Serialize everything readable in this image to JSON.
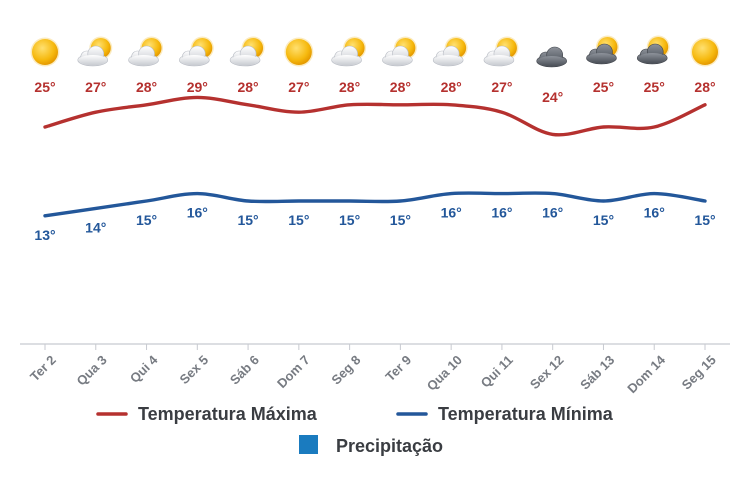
{
  "chart_data": {
    "type": "line",
    "categories": [
      "Ter 2",
      "Qua 3",
      "Qui 4",
      "Sex 5",
      "Sáb 6",
      "Dom 7",
      "Seg 8",
      "Ter 9",
      "Qua 10",
      "Qui 11",
      "Sex 12",
      "Sáb 13",
      "Dom 14",
      "Seg 15"
    ],
    "icons": [
      "sun-icon",
      "sun-cloud-icon",
      "sun-cloud-icon",
      "sun-cloud-icon",
      "sun-cloud-icon",
      "sun-icon",
      "sun-cloud-icon",
      "sun-cloud-icon",
      "sun-cloud-icon",
      "sun-cloud-icon",
      "dark-cloud-icon",
      "sun-dark-cloud-icon",
      "sun-dark-cloud-icon",
      "sun-icon"
    ],
    "series": [
      {
        "name": "Temperatura Máxima",
        "color": "#b5312f",
        "values": [
          25,
          27,
          28,
          29,
          28,
          27,
          28,
          28,
          28,
          27,
          24,
          25,
          25,
          28
        ],
        "labels": [
          "25°",
          "27°",
          "28°",
          "29°",
          "28°",
          "27°",
          "28°",
          "28°",
          "28°",
          "27°",
          "24°",
          "25°",
          "25°",
          "28°"
        ]
      },
      {
        "name": "Temperatura Mínima",
        "color": "#23579a",
        "values": [
          13,
          14,
          15,
          16,
          15,
          15,
          15,
          15,
          16,
          16,
          16,
          15,
          16,
          15
        ],
        "labels": [
          "13°",
          "14°",
          "15°",
          "16°",
          "15°",
          "15°",
          "15°",
          "15°",
          "16°",
          "16°",
          "16°",
          "15°",
          "16°",
          "15°"
        ]
      },
      {
        "name": "Precipitação",
        "color": "#1a7bbf",
        "values": [
          0,
          0,
          0,
          0,
          0,
          0,
          0,
          0,
          0,
          0,
          0,
          0,
          0,
          0
        ]
      }
    ],
    "legend": [
      "Temperatura Máxima",
      "Temperatura Mínima",
      "Precipitação"
    ],
    "legend_position": "bottom",
    "grid": false
  }
}
